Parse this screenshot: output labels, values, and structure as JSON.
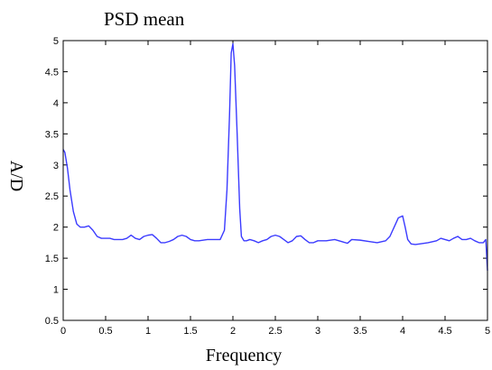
{
  "chart_data": {
    "type": "line",
    "title": "PSD mean",
    "xlabel": "Frequency",
    "ylabel": "A/D",
    "xlim": [
      0,
      5
    ],
    "ylim": [
      0.5,
      5
    ],
    "grid": false,
    "legend": "none",
    "line_color": "#3b3bff",
    "xticks": [
      "0",
      "0.5",
      "1",
      "1.5",
      "2",
      "2.5",
      "3",
      "3.5",
      "4",
      "4.5",
      "5"
    ],
    "yticks": [
      "0.5",
      "1",
      "1.5",
      "2",
      "2.5",
      "3",
      "3.5",
      "4",
      "4.5",
      "5"
    ],
    "series": [
      {
        "x": [
          0,
          0.02,
          0.05,
          0.08,
          0.12,
          0.16,
          0.2,
          0.25,
          0.3,
          0.35,
          0.4,
          0.45,
          0.5,
          0.55,
          0.6,
          0.7,
          0.75,
          0.8,
          0.85,
          0.9,
          0.95,
          1.0,
          1.05,
          1.1,
          1.15,
          1.2,
          1.25,
          1.3,
          1.35,
          1.4,
          1.45,
          1.5,
          1.55,
          1.6,
          1.7,
          1.8,
          1.85,
          1.9,
          1.93,
          1.96,
          1.98,
          2.0,
          2.02,
          2.05,
          2.08,
          2.1,
          2.13,
          2.16,
          2.2,
          2.25,
          2.3,
          2.35,
          2.4,
          2.45,
          2.5,
          2.55,
          2.6,
          2.65,
          2.7,
          2.75,
          2.8,
          2.85,
          2.9,
          2.95,
          3.0,
          3.1,
          3.2,
          3.3,
          3.35,
          3.4,
          3.5,
          3.6,
          3.7,
          3.8,
          3.85,
          3.9,
          3.95,
          4.0,
          4.03,
          4.06,
          4.1,
          4.15,
          4.2,
          4.3,
          4.4,
          4.45,
          4.5,
          4.55,
          4.6,
          4.65,
          4.7,
          4.75,
          4.8,
          4.85,
          4.9,
          4.95,
          4.98,
          5.0
        ],
        "y": [
          3.25,
          3.2,
          2.95,
          2.6,
          2.25,
          2.05,
          2.0,
          2.0,
          2.02,
          1.95,
          1.85,
          1.82,
          1.82,
          1.82,
          1.8,
          1.8,
          1.82,
          1.87,
          1.82,
          1.8,
          1.85,
          1.87,
          1.88,
          1.82,
          1.75,
          1.75,
          1.77,
          1.8,
          1.85,
          1.87,
          1.85,
          1.8,
          1.78,
          1.78,
          1.8,
          1.8,
          1.8,
          1.95,
          2.6,
          3.8,
          4.8,
          4.95,
          4.6,
          3.5,
          2.3,
          1.85,
          1.78,
          1.78,
          1.8,
          1.78,
          1.75,
          1.78,
          1.8,
          1.85,
          1.87,
          1.85,
          1.8,
          1.75,
          1.78,
          1.85,
          1.86,
          1.8,
          1.75,
          1.75,
          1.78,
          1.78,
          1.8,
          1.76,
          1.74,
          1.8,
          1.79,
          1.77,
          1.75,
          1.78,
          1.85,
          2.0,
          2.15,
          2.18,
          2.0,
          1.8,
          1.73,
          1.72,
          1.73,
          1.75,
          1.78,
          1.82,
          1.8,
          1.78,
          1.82,
          1.85,
          1.8,
          1.8,
          1.82,
          1.78,
          1.75,
          1.75,
          1.8,
          1.3
        ]
      }
    ]
  }
}
